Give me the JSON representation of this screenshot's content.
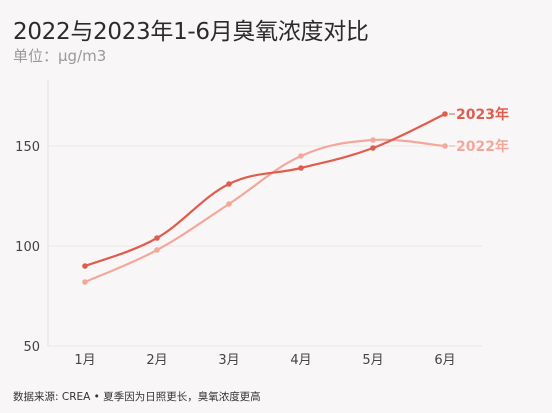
{
  "title": "2022与2023年1-6月臭氧浓度对比",
  "subtitle": "单位：μg/m3",
  "source": "数据来源: CREA • 夏季因为日照更长，臭氧浓度更高",
  "chart_data": {
    "type": "line",
    "title": "2022与2023年1-6月臭氧浓度对比",
    "unit": "单位：μg/m3",
    "categories": [
      "1月",
      "2月",
      "3月",
      "4月",
      "5月",
      "6月"
    ],
    "ylim": [
      50,
      180
    ],
    "yticks": [
      50,
      100,
      150
    ],
    "grid": true,
    "legend": "end-of-line labels",
    "series": [
      {
        "name": "2022年",
        "color": "#f3a89c",
        "values": [
          82,
          98,
          121,
          145,
          153,
          150
        ]
      },
      {
        "name": "2023年",
        "color": "#e05d4d",
        "values": [
          90,
          104,
          131,
          139,
          149,
          166
        ]
      }
    ]
  }
}
